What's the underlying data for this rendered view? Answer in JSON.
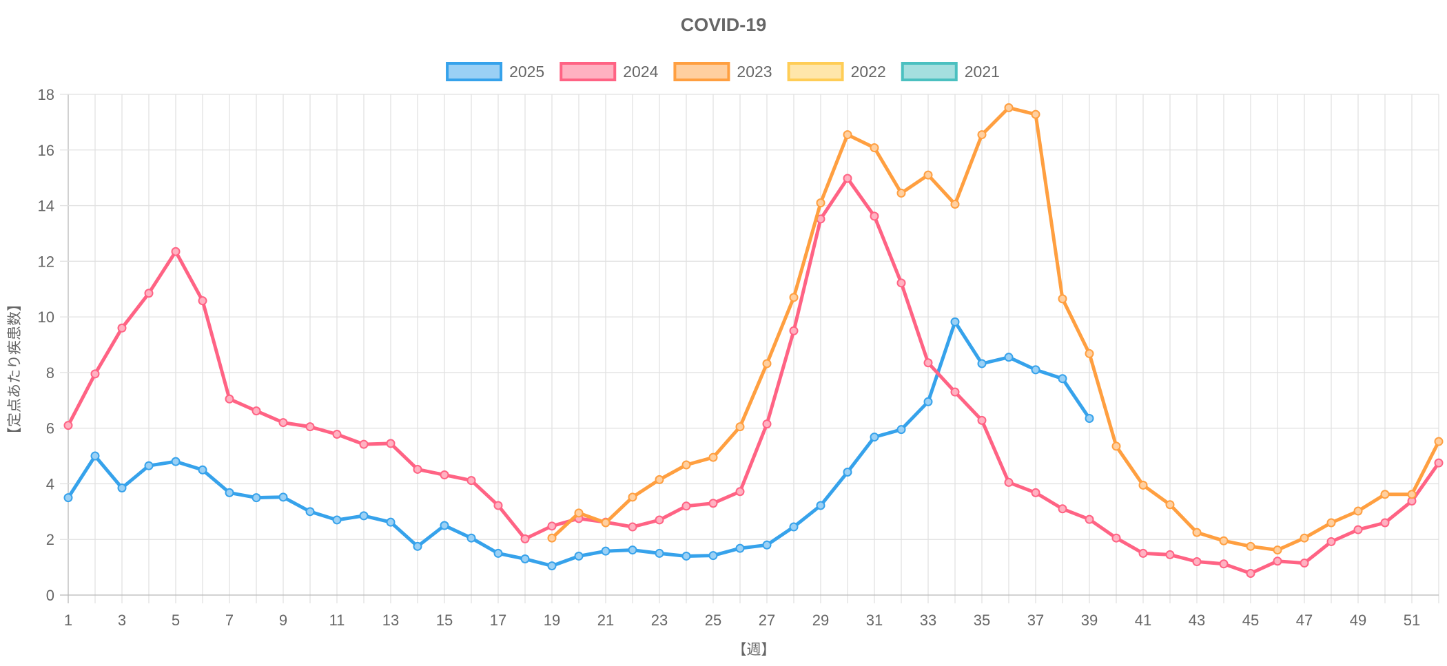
{
  "chart_data": {
    "type": "line",
    "title": "COVID-19",
    "xlabel": "【週】",
    "ylabel": "【定点あたり疾患数】",
    "ylim": [
      0,
      18
    ],
    "yticks": [
      0,
      2,
      4,
      6,
      8,
      10,
      12,
      14,
      16,
      18
    ],
    "x_range": [
      1,
      52
    ],
    "xticks": [
      1,
      3,
      5,
      7,
      9,
      11,
      13,
      15,
      17,
      19,
      21,
      23,
      25,
      27,
      29,
      31,
      33,
      35,
      37,
      39,
      41,
      43,
      45,
      47,
      49,
      51
    ],
    "grid": true,
    "legend_position": "top-center",
    "series": [
      {
        "name": "2025",
        "color": "#36a2eb",
        "fill": "#9ad0f5",
        "start_week": 1,
        "values": [
          3.5,
          5.0,
          3.85,
          4.65,
          4.8,
          4.5,
          3.68,
          3.5,
          3.52,
          3.0,
          2.7,
          2.85,
          2.62,
          1.75,
          2.5,
          2.05,
          1.5,
          1.3,
          1.05,
          1.4,
          1.58,
          1.62,
          1.5,
          1.4,
          1.42,
          1.68,
          1.8,
          2.45,
          3.22,
          4.42,
          5.68,
          5.95,
          6.95,
          9.82,
          8.32,
          8.55,
          8.1,
          7.78,
          6.35
        ]
      },
      {
        "name": "2024",
        "color": "#ff6384",
        "fill": "#ffb1c1",
        "start_week": 1,
        "values": [
          6.1,
          7.95,
          9.6,
          10.85,
          12.35,
          10.58,
          7.05,
          6.62,
          6.2,
          6.05,
          5.78,
          5.42,
          5.45,
          4.52,
          4.32,
          4.12,
          3.22,
          2.02,
          2.48,
          2.75,
          2.62,
          2.45,
          2.7,
          3.2,
          3.3,
          3.72,
          6.15,
          9.5,
          13.52,
          14.98,
          13.62,
          11.22,
          8.35,
          7.3,
          6.28,
          4.05,
          3.68,
          3.1,
          2.72,
          2.05,
          1.5,
          1.45,
          1.2,
          1.12,
          0.78,
          1.22,
          1.15,
          1.92,
          2.35,
          2.6,
          3.38,
          4.75
        ]
      },
      {
        "name": "2023",
        "color": "#ff9f40",
        "fill": "#ffcf9f",
        "start_week": 19,
        "values": [
          2.05,
          2.95,
          2.6,
          3.52,
          4.15,
          4.68,
          4.95,
          6.05,
          8.32,
          10.7,
          14.1,
          16.55,
          16.08,
          14.45,
          15.1,
          14.05,
          16.55,
          17.52,
          17.28,
          10.65,
          8.68,
          5.35,
          3.95,
          3.25,
          2.25,
          1.95,
          1.75,
          1.62,
          2.05,
          2.6,
          3.02,
          3.62,
          3.62,
          5.52
        ]
      },
      {
        "name": "2022",
        "color": "#ffcd56",
        "fill": "#ffe6aa",
        "start_week": 1,
        "values": []
      },
      {
        "name": "2021",
        "color": "#4bc0c0",
        "fill": "#a5dfdf",
        "start_week": 1,
        "values": []
      }
    ]
  }
}
